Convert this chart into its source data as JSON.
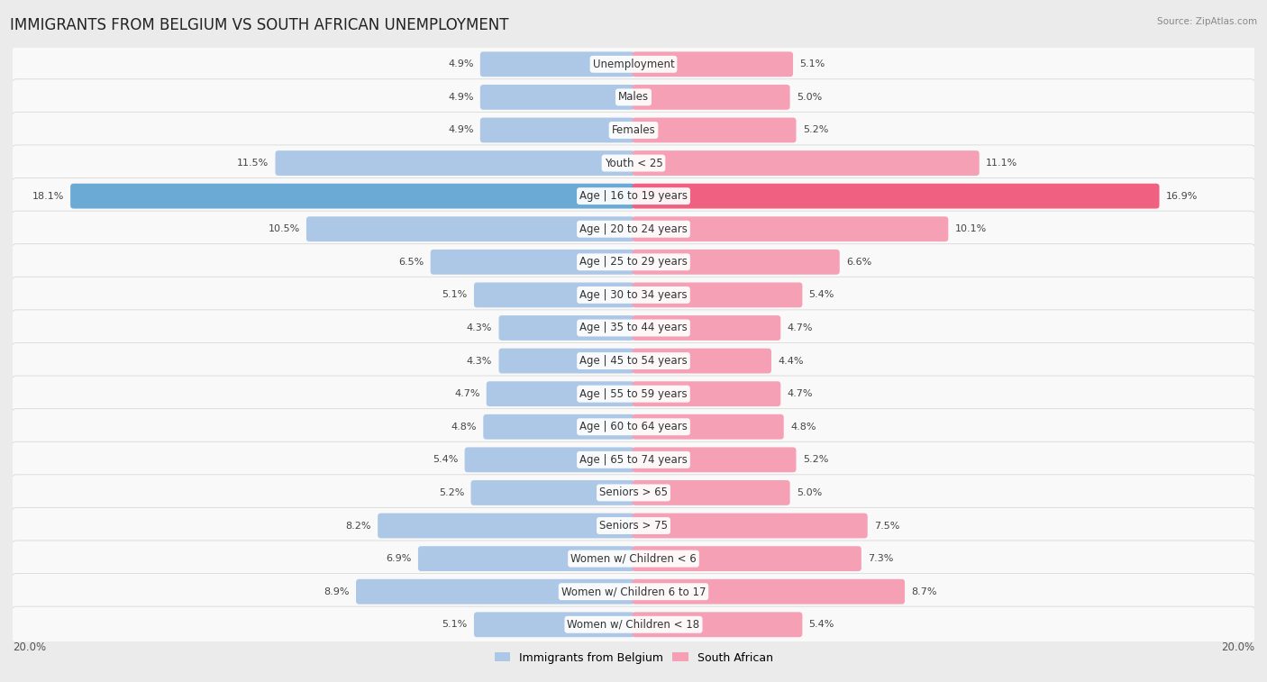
{
  "title": "IMMIGRANTS FROM BELGIUM VS SOUTH AFRICAN UNEMPLOYMENT",
  "source": "Source: ZipAtlas.com",
  "categories": [
    "Unemployment",
    "Males",
    "Females",
    "Youth < 25",
    "Age | 16 to 19 years",
    "Age | 20 to 24 years",
    "Age | 25 to 29 years",
    "Age | 30 to 34 years",
    "Age | 35 to 44 years",
    "Age | 45 to 54 years",
    "Age | 55 to 59 years",
    "Age | 60 to 64 years",
    "Age | 65 to 74 years",
    "Seniors > 65",
    "Seniors > 75",
    "Women w/ Children < 6",
    "Women w/ Children 6 to 17",
    "Women w/ Children < 18"
  ],
  "left_values": [
    4.9,
    4.9,
    4.9,
    11.5,
    18.1,
    10.5,
    6.5,
    5.1,
    4.3,
    4.3,
    4.7,
    4.8,
    5.4,
    5.2,
    8.2,
    6.9,
    8.9,
    5.1
  ],
  "right_values": [
    5.1,
    5.0,
    5.2,
    11.1,
    16.9,
    10.1,
    6.6,
    5.4,
    4.7,
    4.4,
    4.7,
    4.8,
    5.2,
    5.0,
    7.5,
    7.3,
    8.7,
    5.4
  ],
  "left_color": "#adc8e6",
  "right_color": "#f5a0b5",
  "highlight_left_color": "#6aaad4",
  "highlight_right_color": "#f06080",
  "max_val": 20.0,
  "bg_color": "#ebebeb",
  "row_bg_color": "#f9f9f9",
  "row_border_color": "#d8d8d8",
  "legend_left": "Immigrants from Belgium",
  "legend_right": "South African",
  "title_fontsize": 12,
  "label_fontsize": 8.5,
  "value_fontsize": 8,
  "axis_label_fontsize": 8.5
}
